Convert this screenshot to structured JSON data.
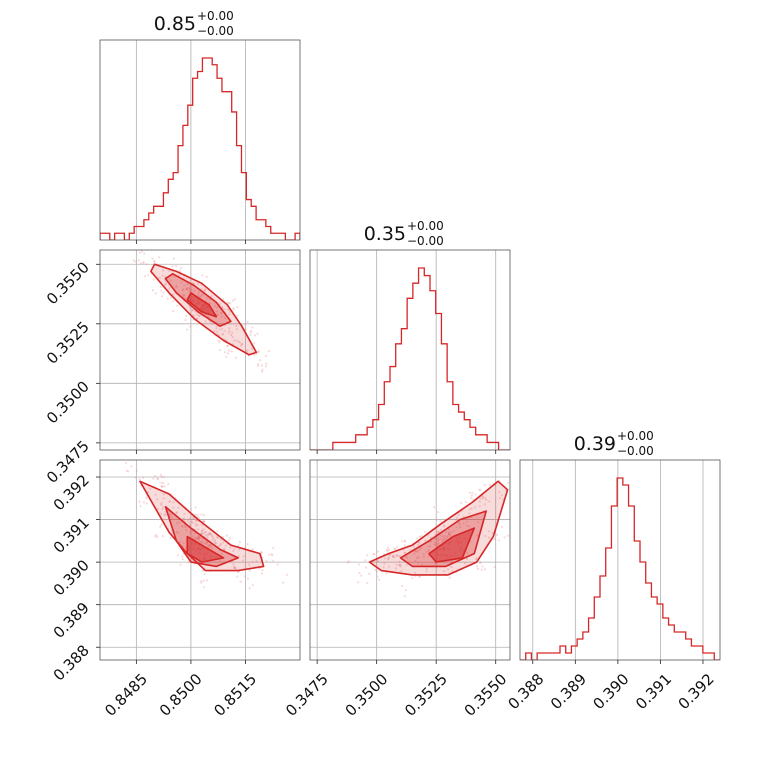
{
  "chart_data": {
    "type": "corner",
    "color": "#d62728",
    "grid": true,
    "parameters": [
      {
        "title_value": "0.85",
        "title_plus": "+0.00",
        "title_minus": "−0.00",
        "range": [
          0.8475,
          0.853
        ],
        "ticks": [
          0.8485,
          0.85,
          0.8515
        ],
        "tick_labels": [
          "0.8485",
          "0.8500",
          "0.8515"
        ],
        "mean": 0.85025,
        "std": 0.00045
      },
      {
        "title_value": "0.35",
        "title_plus": "+0.00",
        "title_minus": "−0.00",
        "range": [
          0.3472,
          0.3556
        ],
        "ticks": [
          0.3475,
          0.35,
          0.3525,
          0.355
        ],
        "tick_labels": [
          "0.3475",
          "0.3500",
          "0.3525",
          "0.3550"
        ],
        "mean": 0.353,
        "std": 0.00075
      },
      {
        "title_value": "0.39",
        "title_plus": "+0.00",
        "title_minus": "−0.00",
        "range": [
          0.3877,
          0.3924
        ],
        "ticks": [
          0.388,
          0.389,
          0.39,
          0.391,
          0.392
        ],
        "tick_labels": [
          "0.388",
          "0.389",
          "0.390",
          "0.391",
          "0.392"
        ],
        "mean": 0.39025,
        "std": 0.00045
      }
    ],
    "histograms": [
      {
        "bins_start": 0.8475,
        "bins_end": 0.853,
        "counts": [
          1,
          1,
          0,
          1,
          1,
          0,
          1,
          2,
          2,
          3,
          4,
          5,
          5,
          7,
          9,
          10,
          14,
          17,
          20,
          24,
          25,
          27,
          27,
          26,
          24,
          22,
          22,
          19,
          14,
          10,
          6,
          5,
          3,
          3,
          2,
          1,
          1,
          1,
          0,
          0,
          1
        ]
      },
      {
        "bins_start": 0.3472,
        "bins_end": 0.3556,
        "counts": [
          0,
          0,
          0,
          0,
          1,
          1,
          1,
          1,
          2,
          2,
          3,
          4,
          6,
          9,
          11,
          14,
          16,
          20,
          22,
          24,
          23,
          21,
          18,
          14,
          9,
          6,
          5,
          4,
          3,
          2,
          2,
          1,
          1,
          0,
          0
        ]
      },
      {
        "bins_start": 0.3877,
        "bins_end": 0.3924,
        "counts": [
          0,
          1,
          0,
          1,
          1,
          1,
          1,
          2,
          1,
          2,
          3,
          4,
          6,
          9,
          12,
          16,
          22,
          26,
          25,
          22,
          17,
          14,
          11,
          9,
          8,
          6,
          5,
          4,
          4,
          3,
          2,
          2,
          1,
          1,
          0
        ]
      }
    ],
    "pairs": [
      {
        "x": 0,
        "y": 1,
        "levels": {
          "outer": [
            [
              0.849,
              0.355
            ],
            [
              0.8496,
              0.3547
            ],
            [
              0.8503,
              0.3542
            ],
            [
              0.851,
              0.3533
            ],
            [
              0.8514,
              0.3524
            ],
            [
              0.8518,
              0.3513
            ],
            [
              0.8516,
              0.3512
            ],
            [
              0.8509,
              0.3518
            ],
            [
              0.8501,
              0.3527
            ],
            [
              0.8494,
              0.3538
            ],
            [
              0.8489,
              0.3547
            ]
          ],
          "inner": [
            [
              0.8495,
              0.3546
            ],
            [
              0.8501,
              0.3541
            ],
            [
              0.8507,
              0.3534
            ],
            [
              0.8511,
              0.3526
            ],
            [
              0.8508,
              0.3524
            ],
            [
              0.8502,
              0.353
            ],
            [
              0.8496,
              0.3538
            ],
            [
              0.8493,
              0.3544
            ]
          ],
          "core": [
            [
              0.85,
              0.3538
            ],
            [
              0.8505,
              0.3533
            ],
            [
              0.8507,
              0.3528
            ],
            [
              0.8503,
              0.353
            ],
            [
              0.8499,
              0.3535
            ]
          ]
        }
      },
      {
        "x": 0,
        "y": 2,
        "levels": {
          "outer": [
            [
              0.8486,
              0.3919
            ],
            [
              0.8494,
              0.3916
            ],
            [
              0.8502,
              0.391
            ],
            [
              0.8511,
              0.3904
            ],
            [
              0.8519,
              0.3902
            ],
            [
              0.852,
              0.3899
            ],
            [
              0.8513,
              0.3898
            ],
            [
              0.8504,
              0.3898
            ],
            [
              0.8499,
              0.3902
            ],
            [
              0.8494,
              0.3907
            ],
            [
              0.849,
              0.3913
            ]
          ],
          "inner": [
            [
              0.8493,
              0.3913
            ],
            [
              0.85,
              0.3908
            ],
            [
              0.8508,
              0.3903
            ],
            [
              0.8513,
              0.3901
            ],
            [
              0.8507,
              0.3899
            ],
            [
              0.85,
              0.39
            ],
            [
              0.8496,
              0.3905
            ]
          ],
          "core": [
            [
              0.8499,
              0.3906
            ],
            [
              0.8505,
              0.3903
            ],
            [
              0.8509,
              0.3901
            ],
            [
              0.8503,
              0.39
            ],
            [
              0.8499,
              0.3902
            ]
          ]
        }
      },
      {
        "x": 1,
        "y": 2,
        "levels": {
          "outer": [
            [
              0.3497,
              0.39
            ],
            [
              0.3505,
              0.3902
            ],
            [
              0.3515,
              0.3904
            ],
            [
              0.3527,
              0.3909
            ],
            [
              0.354,
              0.3914
            ],
            [
              0.3551,
              0.3919
            ],
            [
              0.3555,
              0.3917
            ],
            [
              0.3549,
              0.3906
            ],
            [
              0.3542,
              0.39
            ],
            [
              0.353,
              0.3897
            ],
            [
              0.3515,
              0.3897
            ],
            [
              0.3502,
              0.3898
            ]
          ],
          "inner": [
            [
              0.351,
              0.3901
            ],
            [
              0.3522,
              0.3905
            ],
            [
              0.3535,
              0.391
            ],
            [
              0.3546,
              0.3912
            ],
            [
              0.3541,
              0.3902
            ],
            [
              0.3529,
              0.3899
            ],
            [
              0.3515,
              0.3899
            ]
          ],
          "core": [
            [
              0.3522,
              0.3902
            ],
            [
              0.3532,
              0.3906
            ],
            [
              0.3541,
              0.3908
            ],
            [
              0.3536,
              0.3901
            ],
            [
              0.3525,
              0.39
            ]
          ]
        }
      }
    ]
  }
}
